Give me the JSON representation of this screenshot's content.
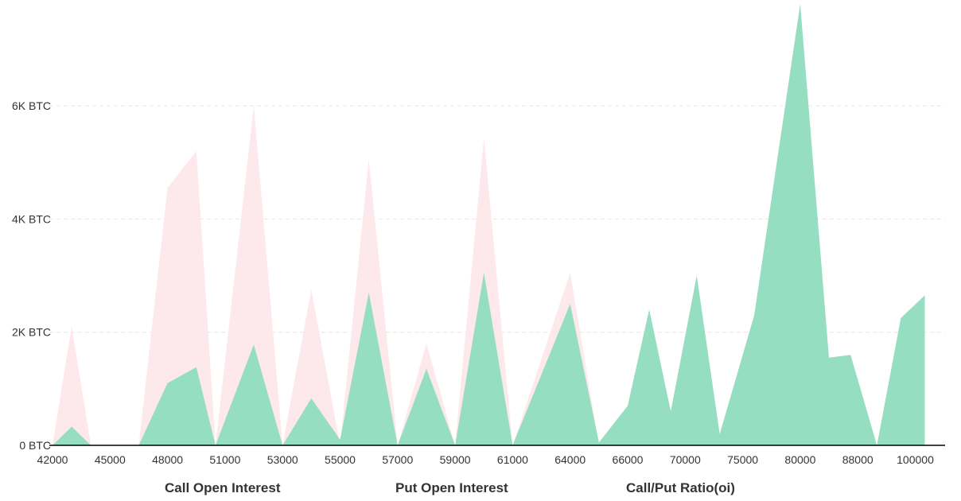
{
  "chart_data": {
    "type": "area",
    "x": [
      "42000",
      "",
      "",
      "",
      "45000",
      "",
      "48000",
      "",
      "",
      "51000",
      "",
      "",
      "53000",
      "",
      "",
      "55000",
      "",
      "",
      "57000",
      "",
      "",
      "59000",
      "",
      "",
      "61000",
      "",
      "",
      "64000",
      "",
      "",
      "66000",
      "",
      "",
      "70000",
      "",
      "",
      "75000",
      "",
      "",
      "80000",
      "",
      "",
      "88000",
      "",
      "",
      "100000",
      ""
    ],
    "xtick_labels": [
      "42000",
      "45000",
      "48000",
      "51000",
      "53000",
      "55000",
      "57000",
      "59000",
      "61000",
      "64000",
      "66000",
      "70000",
      "75000",
      "80000",
      "88000",
      "100000"
    ],
    "ytick_labels": [
      "0 BTC",
      "2K BTC",
      "4K BTC",
      "6K BTC"
    ],
    "ylim": [
      0,
      7800
    ],
    "grid": true,
    "legend_position": "bottom",
    "series": [
      {
        "name": "Call Open Interest",
        "color": "#96dec1",
        "points": [
          [
            42000,
            0
          ],
          [
            43000,
            330
          ],
          [
            44000,
            0
          ],
          [
            45500,
            0
          ],
          [
            46500,
            0
          ],
          [
            48000,
            1100
          ],
          [
            49500,
            1380
          ],
          [
            50500,
            0
          ],
          [
            52000,
            1780
          ],
          [
            53000,
            0
          ],
          [
            54000,
            830
          ],
          [
            55000,
            100
          ],
          [
            56000,
            2700
          ],
          [
            57000,
            0
          ],
          [
            58000,
            1350
          ],
          [
            59000,
            0
          ],
          [
            60000,
            3050
          ],
          [
            61000,
            0
          ],
          [
            64000,
            2500
          ],
          [
            65000,
            50
          ],
          [
            66000,
            700
          ],
          [
            67500,
            2400
          ],
          [
            69000,
            600
          ],
          [
            71000,
            3000
          ],
          [
            73000,
            200
          ],
          [
            76000,
            2300
          ],
          [
            80000,
            7800
          ],
          [
            84000,
            1550
          ],
          [
            87000,
            1600
          ],
          [
            92000,
            0
          ],
          [
            97000,
            2250
          ],
          [
            102000,
            2650
          ]
        ]
      },
      {
        "name": "Put Open Interest",
        "color": "#fde8ec",
        "points": [
          [
            42000,
            0
          ],
          [
            43000,
            2100
          ],
          [
            44000,
            0
          ],
          [
            46500,
            0
          ],
          [
            48000,
            4550
          ],
          [
            49500,
            5200
          ],
          [
            50500,
            0
          ],
          [
            52000,
            6000
          ],
          [
            53000,
            0
          ],
          [
            54000,
            2750
          ],
          [
            55000,
            0
          ],
          [
            56000,
            5050
          ],
          [
            57000,
            0
          ],
          [
            58000,
            1800
          ],
          [
            59000,
            0
          ],
          [
            60000,
            5420
          ],
          [
            61000,
            0
          ],
          [
            64000,
            3050
          ],
          [
            65000,
            0
          ]
        ]
      }
    ],
    "legend": [
      "Call Open Interest",
      "Put Open Interest",
      "Call/Put Ratio(oi)"
    ]
  }
}
